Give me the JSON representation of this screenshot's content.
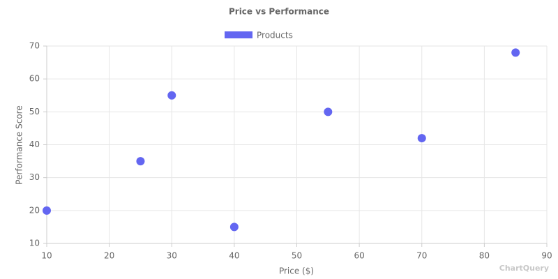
{
  "chart_data": {
    "type": "scatter",
    "title": "Price vs Performance",
    "x_label": "Price ($)",
    "y_label": "Performance Score",
    "series": [
      {
        "name": "Products",
        "color": "#6366f1",
        "x": [
          10,
          25,
          30,
          40,
          55,
          70,
          85
        ],
        "values": [
          20,
          35,
          55,
          15,
          50,
          42,
          68
        ]
      }
    ],
    "xlim": [
      10,
      90
    ],
    "xticks": [
      10,
      20,
      30,
      40,
      50,
      60,
      70,
      80,
      90
    ],
    "ylim": [
      10,
      70
    ],
    "yticks": [
      10,
      20,
      30,
      40,
      50,
      60,
      70
    ],
    "grid": true,
    "legend": "top",
    "watermark": "ChartQuery"
  }
}
